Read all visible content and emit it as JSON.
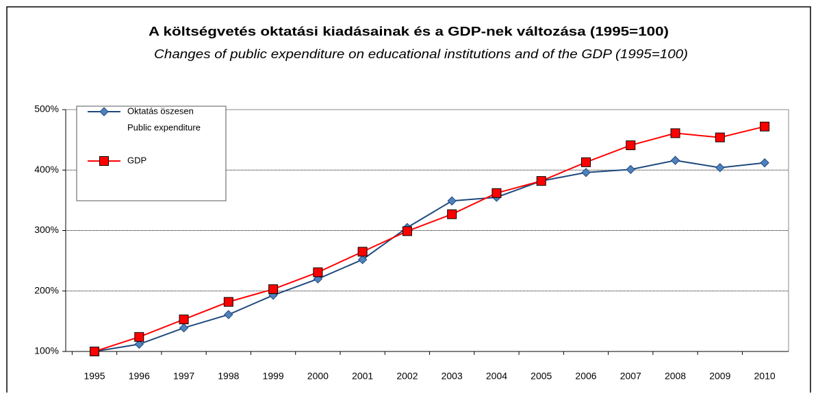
{
  "chart_data": {
    "type": "line",
    "title": "A költségvetés oktatási kiadásainak és a GDP-nek változása (1995=100)",
    "subtitle": "Changes of public expenditure on educational institutions and of the GDP (1995=100)",
    "categories": [
      "1995",
      "1996",
      "1997",
      "1998",
      "1999",
      "2000",
      "2001",
      "2002",
      "2003",
      "2004",
      "2005",
      "2006",
      "2007",
      "2008",
      "2009",
      "2010"
    ],
    "series": [
      {
        "name": [
          "Oktatás öszesen",
          "Public expenditure"
        ],
        "color": "#4f81bd",
        "line_color": "#1f497d",
        "marker": "diamond",
        "values": [
          100,
          112,
          139,
          161,
          193,
          220,
          252,
          305,
          349,
          355,
          382,
          396,
          401,
          416,
          404,
          412
        ]
      },
      {
        "name": "GDP",
        "color": "#ff0000",
        "line_color": "#ff0000",
        "marker": "square",
        "values": [
          100,
          124,
          153,
          182,
          203,
          231,
          265,
          299,
          327,
          362,
          382,
          413,
          441,
          461,
          454,
          472
        ]
      }
    ],
    "ylim": [
      100,
      500
    ],
    "yticks": [
      {
        "value": 100,
        "label": "100%"
      },
      {
        "value": 200,
        "label": "200%"
      },
      {
        "value": 300,
        "label": "300%"
      },
      {
        "value": 400,
        "label": "400%"
      },
      {
        "value": 500,
        "label": "500%"
      }
    ],
    "grid": true,
    "legend": "top-left"
  }
}
